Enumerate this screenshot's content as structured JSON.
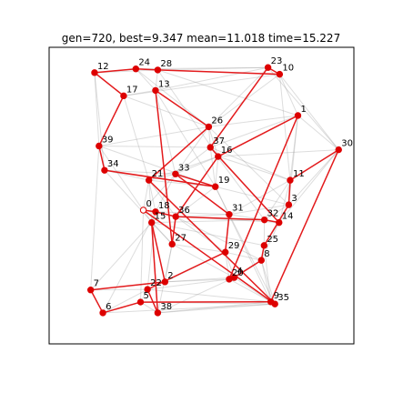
{
  "chart_data": {
    "type": "scatter",
    "title": "gen=720, best=9.347 mean=11.018 time=15.227",
    "xlabel": "",
    "ylabel": "",
    "xlim": [
      -0.05,
      1.05
    ],
    "ylim": [
      -0.05,
      1.05
    ],
    "axis_ticks_visible": false,
    "grid": false,
    "colors": {
      "best_tour": "#e31a1c",
      "population_edges": "#9e9e9e",
      "city": "#dd0000",
      "start_city": "#ffffff"
    },
    "start_city": 0,
    "cities": [
      {
        "id": 0,
        "x": 0.29,
        "y": 0.446
      },
      {
        "id": 1,
        "x": 0.848,
        "y": 0.797
      },
      {
        "id": 2,
        "x": 0.368,
        "y": 0.18
      },
      {
        "id": 3,
        "x": 0.815,
        "y": 0.466
      },
      {
        "id": 4,
        "x": 0.618,
        "y": 0.196
      },
      {
        "id": 5,
        "x": 0.28,
        "y": 0.105
      },
      {
        "id": 6,
        "x": 0.144,
        "y": 0.065
      },
      {
        "id": 7,
        "x": 0.1,
        "y": 0.15
      },
      {
        "id": 8,
        "x": 0.716,
        "y": 0.26
      },
      {
        "id": 9,
        "x": 0.75,
        "y": 0.106
      },
      {
        "id": 10,
        "x": 0.782,
        "y": 0.95
      },
      {
        "id": 11,
        "x": 0.82,
        "y": 0.557
      },
      {
        "id": 12,
        "x": 0.114,
        "y": 0.956
      },
      {
        "id": 13,
        "x": 0.334,
        "y": 0.89
      },
      {
        "id": 14,
        "x": 0.78,
        "y": 0.4
      },
      {
        "id": 15,
        "x": 0.32,
        "y": 0.4
      },
      {
        "id": 16,
        "x": 0.56,
        "y": 0.645
      },
      {
        "id": 17,
        "x": 0.219,
        "y": 0.87
      },
      {
        "id": 18,
        "x": 0.334,
        "y": 0.44
      },
      {
        "id": 19,
        "x": 0.55,
        "y": 0.533
      },
      {
        "id": 20,
        "x": 0.6,
        "y": 0.19
      },
      {
        "id": 21,
        "x": 0.31,
        "y": 0.557
      },
      {
        "id": 22,
        "x": 0.305,
        "y": 0.152
      },
      {
        "id": 23,
        "x": 0.74,
        "y": 0.975
      },
      {
        "id": 24,
        "x": 0.263,
        "y": 0.97
      },
      {
        "id": 25,
        "x": 0.726,
        "y": 0.315
      },
      {
        "id": 26,
        "x": 0.526,
        "y": 0.755
      },
      {
        "id": 27,
        "x": 0.394,
        "y": 0.32
      },
      {
        "id": 28,
        "x": 0.342,
        "y": 0.966
      },
      {
        "id": 29,
        "x": 0.586,
        "y": 0.29
      },
      {
        "id": 30,
        "x": 0.995,
        "y": 0.67
      },
      {
        "id": 31,
        "x": 0.6,
        "y": 0.43
      },
      {
        "id": 32,
        "x": 0.727,
        "y": 0.41
      },
      {
        "id": 33,
        "x": 0.406,
        "y": 0.58
      },
      {
        "id": 34,
        "x": 0.15,
        "y": 0.594
      },
      {
        "id": 35,
        "x": 0.765,
        "y": 0.098
      },
      {
        "id": 36,
        "x": 0.407,
        "y": 0.422
      },
      {
        "id": 37,
        "x": 0.532,
        "y": 0.679
      },
      {
        "id": 38,
        "x": 0.342,
        "y": 0.065
      },
      {
        "id": 39,
        "x": 0.13,
        "y": 0.684
      }
    ],
    "best_tour": [
      0,
      18,
      36,
      16,
      1,
      20,
      4,
      8,
      25,
      3,
      11,
      30,
      9,
      5,
      6,
      7,
      2,
      15,
      38,
      22,
      29,
      31,
      33,
      19,
      34,
      39,
      17,
      12,
      24,
      28,
      10,
      23,
      37,
      14,
      32,
      36,
      27,
      13,
      26,
      21,
      35,
      0
    ],
    "population_edges": [
      [
        12,
        17
      ],
      [
        17,
        10
      ],
      [
        24,
        23
      ],
      [
        28,
        1
      ],
      [
        13,
        23
      ],
      [
        39,
        26
      ],
      [
        39,
        19
      ],
      [
        34,
        33
      ],
      [
        21,
        19
      ],
      [
        0,
        36
      ],
      [
        18,
        31
      ],
      [
        15,
        32
      ],
      [
        27,
        29
      ],
      [
        29,
        8
      ],
      [
        2,
        20
      ],
      [
        2,
        4
      ],
      [
        22,
        9
      ],
      [
        5,
        35
      ],
      [
        6,
        35
      ],
      [
        7,
        22
      ],
      [
        38,
        9
      ],
      [
        38,
        4
      ],
      [
        20,
        35
      ],
      [
        4,
        9
      ],
      [
        8,
        9
      ],
      [
        25,
        14
      ],
      [
        3,
        32
      ],
      [
        11,
        31
      ],
      [
        1,
        30
      ],
      [
        10,
        30
      ],
      [
        23,
        26
      ],
      [
        37,
        19
      ],
      [
        16,
        33
      ],
      [
        26,
        37
      ],
      [
        33,
        21
      ],
      [
        19,
        36
      ],
      [
        36,
        31
      ],
      [
        31,
        32
      ],
      [
        32,
        14
      ],
      [
        14,
        8
      ],
      [
        25,
        8
      ],
      [
        3,
        11
      ],
      [
        11,
        1
      ],
      [
        1,
        10
      ],
      [
        10,
        23
      ],
      [
        17,
        39
      ],
      [
        39,
        34
      ],
      [
        34,
        21
      ],
      [
        21,
        0
      ],
      [
        0,
        18
      ],
      [
        18,
        15
      ],
      [
        15,
        27
      ],
      [
        27,
        2
      ],
      [
        2,
        22
      ],
      [
        22,
        5
      ],
      [
        5,
        6
      ],
      [
        6,
        7
      ],
      [
        7,
        39
      ],
      [
        24,
        13
      ],
      [
        13,
        17
      ],
      [
        28,
        13
      ],
      [
        24,
        12
      ],
      [
        26,
        16
      ],
      [
        16,
        11
      ],
      [
        37,
        1
      ],
      [
        19,
        3
      ],
      [
        33,
        31
      ],
      [
        36,
        29
      ],
      [
        29,
        20
      ],
      [
        20,
        4
      ],
      [
        4,
        8
      ],
      [
        8,
        35
      ],
      [
        9,
        35
      ],
      [
        3,
        30
      ],
      [
        14,
        11
      ],
      [
        32,
        25
      ],
      [
        31,
        29
      ],
      [
        27,
        36
      ],
      [
        15,
        2
      ],
      [
        18,
        22
      ],
      [
        0,
        5
      ],
      [
        21,
        38
      ],
      [
        33,
        6
      ],
      [
        19,
        9
      ],
      [
        37,
        32
      ],
      [
        16,
        14
      ],
      [
        26,
        3
      ],
      [
        13,
        33
      ],
      [
        28,
        16
      ],
      [
        23,
        30
      ],
      [
        10,
        11
      ],
      [
        1,
        3
      ],
      [
        12,
        34
      ],
      [
        17,
        21
      ],
      [
        24,
        26
      ],
      [
        39,
        15
      ],
      [
        34,
        27
      ],
      [
        21,
        36
      ],
      [
        33,
        37
      ],
      [
        26,
        1
      ],
      [
        23,
        37
      ],
      [
        10,
        26
      ],
      [
        12,
        39
      ],
      [
        7,
        2
      ],
      [
        6,
        22
      ],
      [
        5,
        38
      ],
      [
        38,
        35
      ],
      [
        22,
        20
      ],
      [
        2,
        29
      ],
      [
        27,
        4
      ],
      [
        15,
        25
      ],
      [
        36,
        14
      ],
      [
        31,
        3
      ],
      [
        32,
        11
      ],
      [
        14,
        30
      ],
      [
        25,
        9
      ],
      [
        8,
        20
      ],
      [
        29,
        4
      ],
      [
        18,
        21
      ],
      [
        0,
        33
      ],
      [
        21,
        16
      ],
      [
        19,
        31
      ],
      [
        13,
        19
      ],
      [
        17,
        26
      ],
      [
        24,
        10
      ],
      [
        28,
        23
      ],
      [
        12,
        28
      ],
      [
        39,
        37
      ],
      [
        34,
        19
      ],
      [
        16,
        30
      ],
      [
        37,
        11
      ],
      [
        36,
        8
      ],
      [
        31,
        35
      ],
      [
        27,
        38
      ],
      [
        15,
        7
      ],
      [
        18,
        36
      ],
      [
        33,
        26
      ],
      [
        19,
        16
      ]
    ]
  }
}
